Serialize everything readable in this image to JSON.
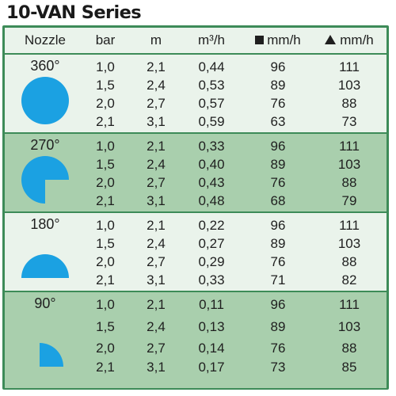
{
  "title": "10-VAN Series",
  "headers": {
    "nozzle": "Nozzle",
    "bar": "bar",
    "m": "m",
    "flow": "m³/h",
    "square_rate": "mm/h",
    "triangle_rate": "mm/h"
  },
  "colors": {
    "frame_green": "#3d8b58",
    "light_band": "#eaf3eb",
    "dark_band": "#a9cfad",
    "nozzle_blue": "#1ba1e2"
  },
  "icons": {
    "square_spacing": "square-icon",
    "triangle_spacing": "triangle-icon"
  },
  "groups": [
    {
      "angle": "360°",
      "shape": "full-circle",
      "rows": [
        {
          "bar": "1,0",
          "m": "2,1",
          "flow": "0,44",
          "sq": "96",
          "tri": "111"
        },
        {
          "bar": "1,5",
          "m": "2,4",
          "flow": "0,53",
          "sq": "89",
          "tri": "103"
        },
        {
          "bar": "2,0",
          "m": "2,7",
          "flow": "0,57",
          "sq": "76",
          "tri": "88"
        },
        {
          "bar": "2,1",
          "m": "3,1",
          "flow": "0,59",
          "sq": "63",
          "tri": "73"
        }
      ]
    },
    {
      "angle": "270°",
      "shape": "three-quarter-circle",
      "rows": [
        {
          "bar": "1,0",
          "m": "2,1",
          "flow": "0,33",
          "sq": "96",
          "tri": "111"
        },
        {
          "bar": "1,5",
          "m": "2,4",
          "flow": "0,40",
          "sq": "89",
          "tri": "103"
        },
        {
          "bar": "2,0",
          "m": "2,7",
          "flow": "0,43",
          "sq": "76",
          "tri": "88"
        },
        {
          "bar": "2,1",
          "m": "3,1",
          "flow": "0,48",
          "sq": "68",
          "tri": "79"
        }
      ]
    },
    {
      "angle": "180°",
      "shape": "half-circle",
      "rows": [
        {
          "bar": "1,0",
          "m": "2,1",
          "flow": "0,22",
          "sq": "96",
          "tri": "111"
        },
        {
          "bar": "1,5",
          "m": "2,4",
          "flow": "0,27",
          "sq": "89",
          "tri": "103"
        },
        {
          "bar": "2,0",
          "m": "2,7",
          "flow": "0,29",
          "sq": "76",
          "tri": "88"
        },
        {
          "bar": "2,1",
          "m": "3,1",
          "flow": "0,33",
          "sq": "71",
          "tri": "82"
        }
      ]
    },
    {
      "angle": "90°",
      "shape": "quarter-circle",
      "rows": [
        {
          "bar": "1,0",
          "m": "2,1",
          "flow": "0,11",
          "sq": "96",
          "tri": "111"
        },
        {
          "bar": "1,5",
          "m": "2,4",
          "flow": "0,13",
          "sq": "89",
          "tri": "103"
        },
        {
          "bar": "2,0",
          "m": "2,7",
          "flow": "0,14",
          "sq": "76",
          "tri": "88"
        },
        {
          "bar": "2,1",
          "m": "3,1",
          "flow": "0,17",
          "sq": "73",
          "tri": "85"
        }
      ]
    }
  ]
}
